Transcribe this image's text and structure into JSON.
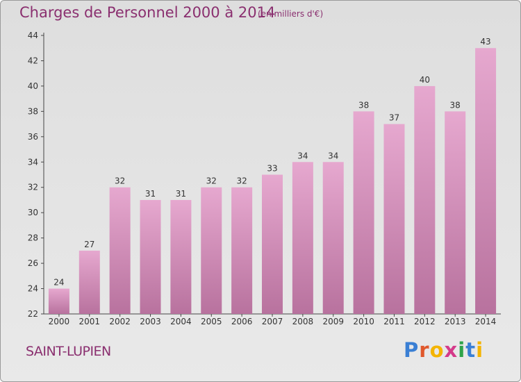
{
  "header": {
    "title": "Charges de Personnel 2000 à 2014",
    "unit": "(en milliers d'€)"
  },
  "footer": {
    "place": "SAINT-LUPIEN",
    "logo_letters": [
      "P",
      "r",
      "o",
      "x",
      "i",
      "t",
      "i"
    ],
    "logo_colors": [
      "#3a7fd4",
      "#e0582c",
      "#f4b400",
      "#d43a8a",
      "#2fa34a",
      "#3a7fd4",
      "#f4b400"
    ]
  },
  "colors": {
    "bar": "#d68fbc",
    "text": "#8a2f6f"
  },
  "chart_data": {
    "type": "bar",
    "title": "Charges de Personnel 2000 à 2014",
    "subtitle": "(en milliers d'€)",
    "categories": [
      "2000",
      "2001",
      "2002",
      "2003",
      "2004",
      "2005",
      "2006",
      "2007",
      "2008",
      "2009",
      "2010",
      "2011",
      "2012",
      "2013",
      "2014"
    ],
    "values": [
      24,
      27,
      32,
      31,
      31,
      32,
      32,
      33,
      34,
      34,
      38,
      37,
      40,
      38,
      43
    ],
    "ylim": [
      22,
      44
    ],
    "yticks": [
      22,
      24,
      26,
      28,
      30,
      32,
      34,
      36,
      38,
      40,
      42,
      44
    ],
    "grid": false,
    "legend": "none"
  }
}
